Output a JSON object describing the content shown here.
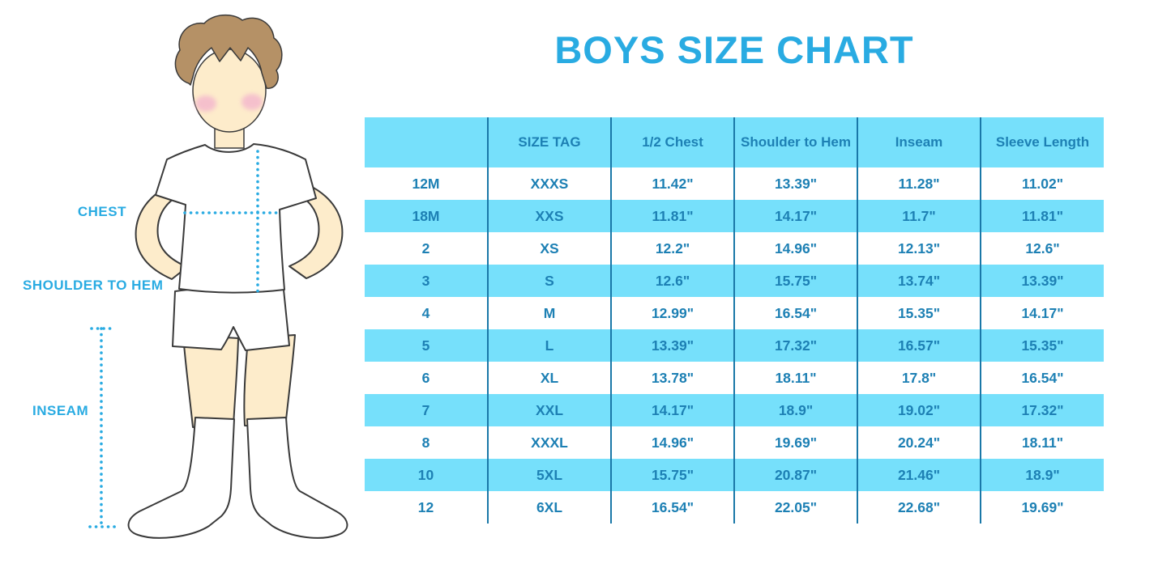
{
  "title": "BOYS SIZE CHART",
  "figure": {
    "illustration": "boy-front-view-in-tshirt-shorts-and-socks",
    "labels": {
      "chest": "CHEST",
      "shoulder_to_hem": "SHOULDER TO HEM",
      "inseam": "INSEAM"
    },
    "guides": [
      "chest-dotted-line",
      "shoulder-to-hem-dotted-line",
      "inseam-dotted-line"
    ]
  },
  "chart_data": {
    "type": "table",
    "title": "BOYS SIZE CHART",
    "columns": [
      "",
      "SIZE TAG",
      "1/2 Chest",
      "Shoulder to Hem",
      "Inseam",
      "Sleeve Length"
    ],
    "rows": [
      [
        "12M",
        "XXXS",
        "11.42\"",
        "13.39\"",
        "11.28\"",
        "11.02\""
      ],
      [
        "18M",
        "XXS",
        "11.81\"",
        "14.17\"",
        "11.7\"",
        "11.81\""
      ],
      [
        "2",
        "XS",
        "12.2\"",
        "14.96\"",
        "12.13\"",
        "12.6\""
      ],
      [
        "3",
        "S",
        "12.6\"",
        "15.75\"",
        "13.74\"",
        "13.39\""
      ],
      [
        "4",
        "M",
        "12.99\"",
        "16.54\"",
        "15.35\"",
        "14.17\""
      ],
      [
        "5",
        "L",
        "13.39\"",
        "17.32\"",
        "16.57\"",
        "15.35\""
      ],
      [
        "6",
        "XL",
        "13.78\"",
        "18.11\"",
        "17.8\"",
        "16.54\""
      ],
      [
        "7",
        "XXL",
        "14.17\"",
        "18.9\"",
        "19.02\"",
        "17.32\""
      ],
      [
        "8",
        "XXXL",
        "14.96\"",
        "19.69\"",
        "20.24\"",
        "18.11\""
      ],
      [
        "10",
        "5XL",
        "15.75\"",
        "20.87\"",
        "21.46\"",
        "18.9\""
      ],
      [
        "12",
        "6XL",
        "16.54\"",
        "22.05\"",
        "22.68\"",
        "19.69\""
      ]
    ],
    "layout": {
      "striped_rows": "alternating white and light blue starting white",
      "header_background": "light blue",
      "grid": "vertical dividers only"
    }
  },
  "colors": {
    "accent_blue": "#29abe2",
    "stripe_blue": "#76e0fb",
    "cell_text_blue": "#1d80b4",
    "divider_blue": "#1a78a8",
    "skin": "#fdeccb",
    "hair": "#b59166",
    "cheek_pink": "#f4b9cd"
  }
}
